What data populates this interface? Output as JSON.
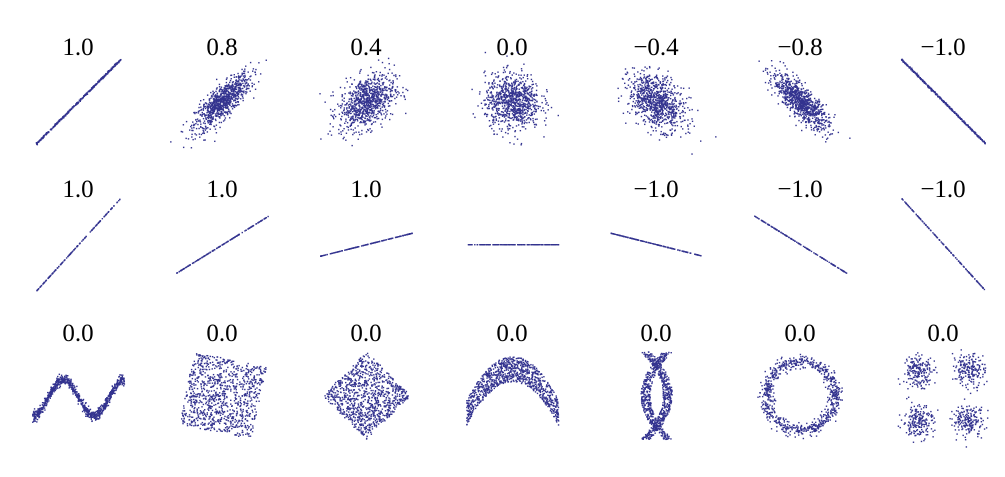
{
  "chart_data": {
    "type": "scatter",
    "title": "",
    "grid": false,
    "legend": "none",
    "point_color": "#33338f",
    "rows": [
      {
        "panels": [
          {
            "label": "1.0",
            "shape": "gaussian",
            "r": 1.0,
            "n": 400
          },
          {
            "label": "0.8",
            "shape": "gaussian",
            "r": 0.8,
            "n": 900
          },
          {
            "label": "0.4",
            "shape": "gaussian",
            "r": 0.4,
            "n": 900
          },
          {
            "label": "0.0",
            "shape": "gaussian",
            "r": 0.0,
            "n": 900
          },
          {
            "label": "−0.4",
            "shape": "gaussian",
            "r": -0.4,
            "n": 900
          },
          {
            "label": "−0.8",
            "shape": "gaussian",
            "r": -0.8,
            "n": 900
          },
          {
            "label": "−1.0",
            "shape": "gaussian",
            "r": -1.0,
            "n": 400
          }
        ]
      },
      {
        "panels": [
          {
            "label": "1.0",
            "shape": "line",
            "slope": 1.1,
            "n": 160
          },
          {
            "label": "1.0",
            "shape": "line",
            "slope": 0.62,
            "n": 160
          },
          {
            "label": "1.0",
            "shape": "line",
            "slope": 0.25,
            "n": 160
          },
          {
            "label": "",
            "shape": "line",
            "slope": 0.0,
            "n": 160
          },
          {
            "label": "−1.0",
            "shape": "line",
            "slope": -0.25,
            "n": 160
          },
          {
            "label": "−1.0",
            "shape": "line",
            "slope": -0.62,
            "n": 160
          },
          {
            "label": "−1.0",
            "shape": "line",
            "slope": -1.1,
            "n": 160
          }
        ]
      },
      {
        "panels": [
          {
            "label": "0.0",
            "shape": "wave",
            "n": 900
          },
          {
            "label": "0.0",
            "shape": "rotated-square",
            "angle": -12,
            "n": 1000
          },
          {
            "label": "0.0",
            "shape": "rotated-square",
            "angle": 45,
            "n": 1000
          },
          {
            "label": "0.0",
            "shape": "parabola",
            "n": 1000
          },
          {
            "label": "0.0",
            "shape": "cross",
            "n": 900
          },
          {
            "label": "0.0",
            "shape": "ring",
            "n": 800
          },
          {
            "label": "0.0",
            "shape": "four-clusters",
            "n": 800
          }
        ]
      }
    ]
  }
}
